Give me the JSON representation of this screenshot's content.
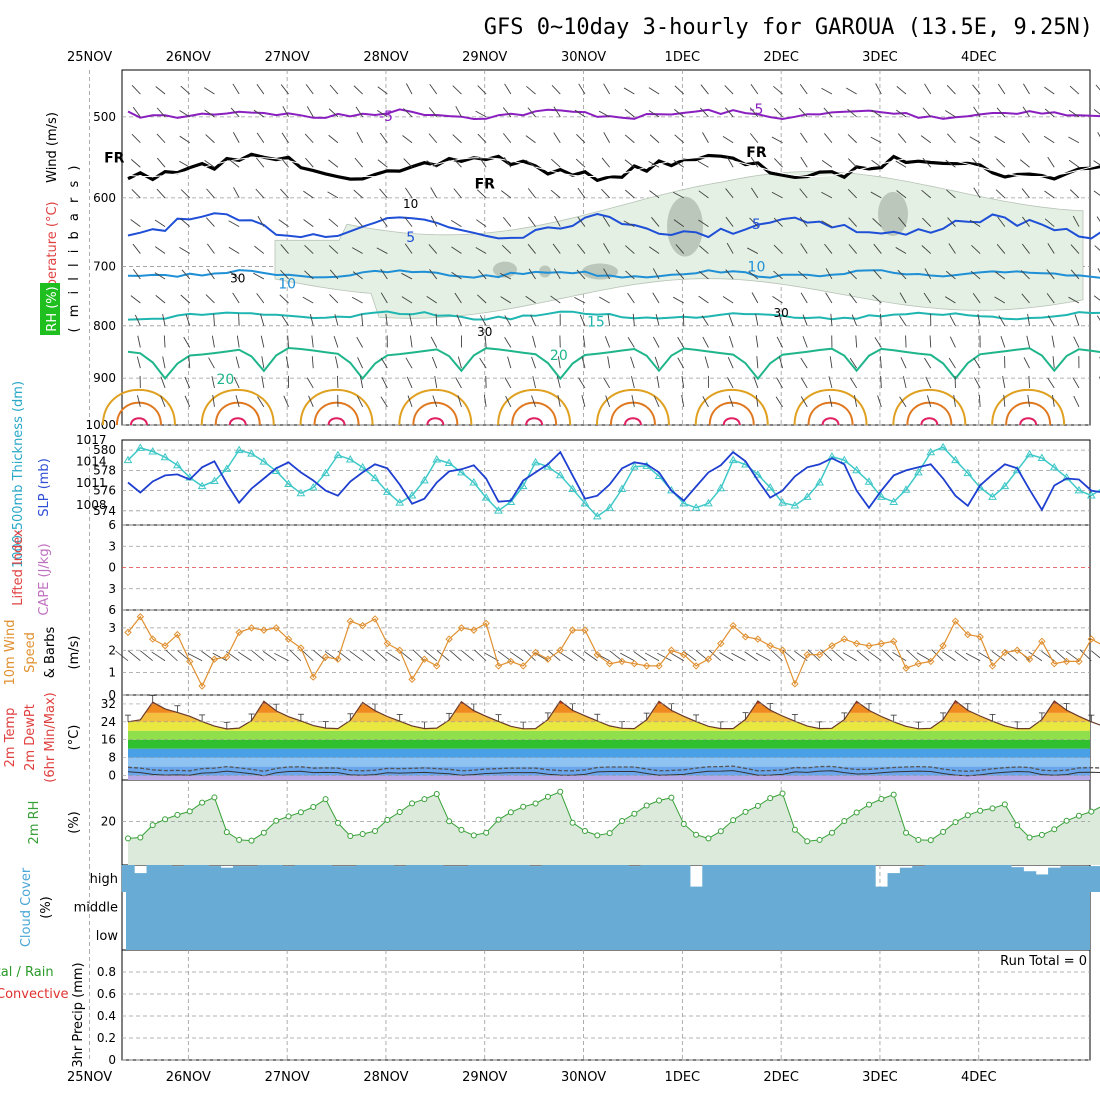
{
  "title": "GFS 0~10day 3-hourly for GAROUA (13.5E, 9.25N)",
  "date_labels": [
    "25NOV",
    "26NOV",
    "27NOV",
    "28NOV",
    "29NOV",
    "30NOV",
    "1DEC",
    "2DEC",
    "3DEC",
    "4DEC"
  ],
  "colors": {
    "rh_fill": "#e3f0e3",
    "rh_dark": "#a8b5a8",
    "t_m5": "#8a1fbf",
    "t_fr": "#000000",
    "t_5": "#1f4fd6",
    "t_10": "#1f8fd6",
    "t_15": "#1fb5b0",
    "t_20": "#1fb58a",
    "t_25": "#e0a020",
    "t_30": "#e07820",
    "t_35": "#e02060",
    "slp": "#40c8c8",
    "thick": "#1f3fd0",
    "li": "#e04040",
    "cape": "#c070c0",
    "wind": "#e09030",
    "barb": "#404040",
    "rh2m": "#38a038",
    "rh2m_fill": "#e6f2e6",
    "cloud": "#68acd6",
    "precip_label": "#2a9a2a",
    "conv": "#e03030"
  },
  "chart_data": [
    {
      "id": "upper_air",
      "type": "contour",
      "ylabel_parts": [
        "Wind (m/s)",
        "Temperature (°C)",
        "( m i l l i b a r s )",
        "RH (%)"
      ],
      "y_ticks": [
        500,
        600,
        700,
        800,
        900,
        1000
      ],
      "ylim": [
        1000,
        450
      ],
      "log_scale": true,
      "contour_labels": [
        {
          "text": "-5",
          "x": "28NOV",
          "p": 499
        },
        {
          "text": "-5",
          "x": "1DEC 18Z",
          "p": 491
        },
        {
          "text": "FR",
          "x": "25NOV 06Z",
          "p": 548
        },
        {
          "text": "FR",
          "x": "29NOV",
          "p": 581
        },
        {
          "text": "FR",
          "x": "1DEC 18Z",
          "p": 541
        },
        {
          "text": "5",
          "x": "28NOV 06Z",
          "p": 655
        },
        {
          "text": "5",
          "x": "1DEC 18Z",
          "p": 636
        },
        {
          "text": "10",
          "x": "27NOV",
          "p": 727
        },
        {
          "text": "10",
          "x": "1DEC 18Z",
          "p": 700
        },
        {
          "text": "15",
          "x": "29NOV 27Z",
          "p": 792
        },
        {
          "text": "20",
          "x": "29NOV 18Z",
          "p": 854
        },
        {
          "text": "20",
          "x": "26NOV 09Z",
          "p": 902
        }
      ],
      "rh_labels": [
        {
          "text": "10",
          "x": "28NOV 06Z",
          "p": 608
        },
        {
          "text": "30",
          "x": "26NOV 12Z",
          "p": 719
        },
        {
          "text": "30",
          "x": "29NOV",
          "p": 811
        },
        {
          "text": "30",
          "x": "2DEC",
          "p": 777
        }
      ]
    },
    {
      "id": "slp_thickness",
      "type": "line",
      "ylabel_left": "1000-500mb Thickness (dm)",
      "ylabel_right": "SLP (mb)",
      "left_ticks": [
        574,
        576,
        578,
        580
      ],
      "left_ylim": [
        572.6,
        581.0
      ],
      "right_ticks": [
        1008,
        1011,
        1014,
        1017
      ],
      "right_ylim": [
        1005.2,
        1017.0
      ],
      "series": [
        {
          "name": "SLP (mb)",
          "values": [
            1014.2,
            1015.9,
            1015.4,
            1014.6,
            1013.5,
            1011.8,
            1010.6,
            1011.3,
            1013.0,
            1015.6,
            1015.1,
            1014.0,
            1012.7,
            1010.9,
            1009.6,
            1010.4,
            1012.4,
            1014.9,
            1014.3,
            1013.2,
            1011.7,
            1009.8,
            1008.3,
            1009.3,
            1011.4,
            1014.3,
            1013.8,
            1012.5,
            1011.1,
            1009.0,
            1007.2,
            1008.4,
            1010.6,
            1013.9,
            1013.3,
            1012.1,
            1010.2,
            1008.2,
            1006.4,
            1007.6,
            1010.2,
            1013.3,
            1013.4,
            1012.0,
            1010.0,
            1008.2,
            1007.6,
            1008.2,
            1010.3,
            1014.2,
            1013.6,
            1012.2,
            1010.4,
            1008.3,
            1007.9,
            1009.1,
            1011.1,
            1014.7,
            1014.2,
            1012.8,
            1011.2,
            1009.1,
            1008.4,
            1010.1,
            1012.5,
            1015.3,
            1016.0,
            1014.2,
            1012.4,
            1010.4,
            1009.1,
            1010.6,
            1012.8,
            1015.0,
            1014.5,
            1013.2,
            1011.8,
            1010.0,
            1009.3,
            1010.4
          ]
        },
        {
          "name": "1000-500mb Thickness (dm)",
          "values": [
            576.8,
            575.8,
            576.9,
            577.5,
            577.6,
            577.1,
            578.3,
            578.9,
            576.7,
            574.8,
            576.2,
            577.2,
            578.2,
            578.8,
            577.8,
            577.0,
            576.0,
            575.5,
            576.9,
            577.8,
            578.6,
            578.2,
            576.6,
            574.7,
            575.2,
            576.8,
            577.9,
            578.1,
            578.5,
            577.2,
            574.9,
            575.0,
            577.0,
            577.8,
            578.6,
            579.8,
            577.5,
            575.2,
            575.5,
            576.6,
            578.2,
            578.8,
            578.6,
            577.8,
            576.0,
            575.0,
            576.4,
            577.8,
            578.5,
            579.8,
            578.9,
            577.0,
            575.3,
            576.0,
            577.4,
            578.3,
            578.6,
            579.2,
            578.6,
            576.0,
            574.3,
            576.0,
            577.5,
            578.0,
            578.3,
            578.6,
            577.2,
            575.5,
            574.5,
            576.5,
            577.6,
            578.6,
            578.2,
            576.1,
            574.1,
            576.5,
            577.2,
            577.1,
            576.0,
            575.8
          ]
        }
      ]
    },
    {
      "id": "stability",
      "type": "line",
      "ylabel_left": "Lifted Index",
      "ylabel_right": "CAPE (J/kg)",
      "y_ticks": [
        -6,
        -3,
        0,
        3,
        6
      ],
      "y_tick_text": [
        "6",
        "3",
        "0",
        "3",
        "6"
      ],
      "ylim": [
        6,
        -6
      ],
      "series": [
        {
          "name": "Lifted Index",
          "values": []
        },
        {
          "name": "CAPE (J/kg)",
          "values": []
        }
      ]
    },
    {
      "id": "wind10m",
      "type": "line",
      "ylabel_parts": [
        "10m Wind",
        "Speed",
        "& Barbs",
        "(m/s)"
      ],
      "y_ticks": [
        0,
        1,
        2,
        3
      ],
      "ylim": [
        0,
        3.8
      ],
      "series": [
        {
          "name": "10m Wind Speed",
          "values": [
            2.8,
            3.5,
            2.5,
            2.2,
            2.7,
            1.5,
            0.4,
            1.6,
            1.7,
            2.8,
            3.0,
            2.9,
            3.0,
            2.5,
            2.1,
            0.8,
            1.7,
            1.6,
            3.3,
            3.1,
            3.4,
            2.3,
            2.0,
            0.7,
            1.6,
            1.3,
            2.5,
            3.0,
            2.9,
            3.2,
            1.3,
            1.5,
            1.3,
            1.9,
            1.6,
            2.0,
            2.9,
            2.9,
            1.8,
            1.4,
            1.5,
            1.4,
            1.3,
            1.3,
            2.0,
            1.8,
            1.3,
            1.6,
            2.3,
            3.1,
            2.6,
            2.5,
            2.2,
            2.0,
            0.5,
            1.8,
            1.8,
            2.2,
            2.5,
            2.3,
            2.2,
            2.3,
            2.4,
            1.2,
            1.4,
            1.5,
            2.2,
            3.3,
            2.7,
            2.6,
            1.3,
            1.9,
            2.0,
            1.6,
            2.4,
            1.4,
            1.5,
            1.5,
            2.5,
            2.2
          ]
        }
      ]
    },
    {
      "id": "temp2m",
      "type": "area",
      "ylabel_parts": [
        "2m Temp",
        "2m DewPt",
        "(6hr Min/Max)",
        "(°C)"
      ],
      "y_ticks": [
        0,
        8,
        16,
        24,
        32
      ],
      "ylim": [
        -2,
        36
      ],
      "series": [
        {
          "name": "2m Temp",
          "values": [
            24.0,
            24.9,
            32.8,
            29.8,
            28.2,
            26.5,
            24.1,
            22.1,
            20.8,
            21.2,
            24.5,
            33.2,
            28.9,
            26.3,
            24.4,
            22.3,
            21.2,
            21.0,
            24.6,
            32.7,
            29.0,
            26.4,
            24.3,
            22.2,
            21.0,
            21.2,
            24.8,
            33.0,
            29.0,
            26.5,
            24.2,
            22.0,
            20.9,
            21.0,
            25.0,
            33.3,
            29.1,
            26.7,
            24.4,
            22.2,
            21.1,
            21.0,
            24.9,
            33.2,
            29.1,
            26.5,
            24.1,
            22.0,
            21.0,
            21.0,
            25.1,
            33.3,
            29.2,
            26.6,
            24.3,
            22.1,
            21.0,
            21.1,
            25.0,
            33.2,
            29.1,
            26.4,
            24.0,
            22.0,
            20.9,
            21.1,
            25.0,
            33.4,
            29.1,
            26.6,
            24.3,
            22.2,
            21.0,
            21.0,
            25.0,
            33.3,
            29.2,
            26.5,
            24.0,
            22.0
          ]
        },
        {
          "name": "2m DewPt",
          "values": [
            1.7,
            1.3,
            0.5,
            0.2,
            0.3,
            0.1,
            1.1,
            1.3,
            2.0,
            1.4,
            0.8,
            -0.1,
            1.2,
            1.8,
            1.9,
            1.3,
            1.4,
            1.3,
            0.3,
            0.1,
            0.4,
            1.2,
            1.1,
            1.2,
            1.4,
            1.1,
            0.8,
            0.1,
            0.4,
            0.9,
            1.1,
            1.3,
            1.3,
            1.3,
            0.6,
            0.2,
            0.1,
            0.5,
            1.6,
            1.8,
            1.8,
            1.8,
            0.9,
            0.1,
            0.3,
            0.5,
            1.3,
            1.9,
            2.0,
            2.2,
            1.2,
            0.1,
            0.2,
            0.5,
            1.6,
            1.4,
            2.0,
            2.1,
            1.3,
            0.7,
            0.8,
            1.2,
            1.6,
            1.8,
            2.0,
            1.8,
            0.9,
            0.2,
            -0.1,
            0.3,
            1.0,
            1.5,
            1.8,
            1.6,
            0.4,
            0.1,
            0.4,
            1.4,
            1.5,
            1.3
          ]
        }
      ]
    },
    {
      "id": "rh2m",
      "type": "area",
      "ylabel_parts": [
        "2m RH",
        "(%)"
      ],
      "y_ticks": [
        20
      ],
      "ylim": [
        0,
        39
      ],
      "series": [
        {
          "name": "2m RH",
          "values": [
            12.2,
            12.6,
            18.3,
            21.0,
            23.0,
            24.6,
            28.6,
            31.0,
            15.1,
            11.5,
            11.2,
            14.8,
            20.3,
            22.3,
            24.2,
            26.6,
            30.2,
            19.3,
            13.3,
            14.2,
            15.6,
            20.7,
            24.3,
            28.3,
            30.2,
            32.6,
            20.1,
            16.1,
            13.6,
            14.8,
            20.8,
            24.2,
            26.7,
            28.2,
            31.3,
            33.6,
            19.4,
            15.6,
            13.6,
            14.6,
            20.2,
            23.5,
            27.3,
            29.6,
            30.9,
            18.8,
            13.9,
            12.2,
            15.5,
            20.6,
            24.4,
            27.1,
            30.7,
            32.8,
            16.2,
            10.9,
            11.5,
            14.8,
            20.2,
            24.1,
            27.7,
            30.3,
            32.3,
            14.8,
            11.5,
            11.4,
            15.2,
            19.7,
            22.8,
            24.9,
            26.0,
            27.8,
            18.3,
            12.6,
            13.8,
            16.4,
            20.3,
            22.6,
            24.5,
            27.4
          ]
        }
      ]
    },
    {
      "id": "cloud",
      "type": "bar",
      "ylabel_parts": [
        "Cloud Cover",
        "(%)"
      ],
      "levels": [
        "high",
        "middle",
        "low"
      ],
      "high_cover": [
        1,
        0.7,
        1,
        1,
        0.96,
        1,
        1,
        0.96,
        0.9,
        0.96,
        0.96,
        1,
        1,
        0.96,
        1,
        1,
        1,
        0.96,
        0.96,
        1,
        1,
        1,
        0.96,
        1,
        1,
        1,
        0.96,
        0.96,
        1,
        1,
        1,
        1,
        1,
        0.96,
        1,
        1,
        1,
        1,
        1,
        1,
        1,
        0.96,
        1,
        1,
        1,
        1,
        0.2,
        1,
        1,
        1,
        1,
        1,
        1,
        1,
        1,
        1,
        1,
        1,
        1,
        1,
        1,
        0.2,
        0.7,
        0.9,
        0.96,
        1,
        1,
        1,
        1,
        1,
        1,
        1,
        0.92,
        0.77,
        0.65,
        0.9,
        0.96,
        0.96,
        0.96,
        0.96
      ]
    },
    {
      "id": "precip",
      "type": "bar",
      "ylabel_parts": [
        "Total / Rain",
        "Convective",
        "3hr Precip (mm)"
      ],
      "y_ticks": [
        0,
        0.2,
        0.4,
        0.6,
        0.8
      ],
      "ylim": [
        0,
        1.0
      ],
      "annotation": "Run Total = 0",
      "series": [
        {
          "name": "Total / Rain",
          "values": []
        },
        {
          "name": "Convective",
          "values": []
        }
      ]
    }
  ]
}
